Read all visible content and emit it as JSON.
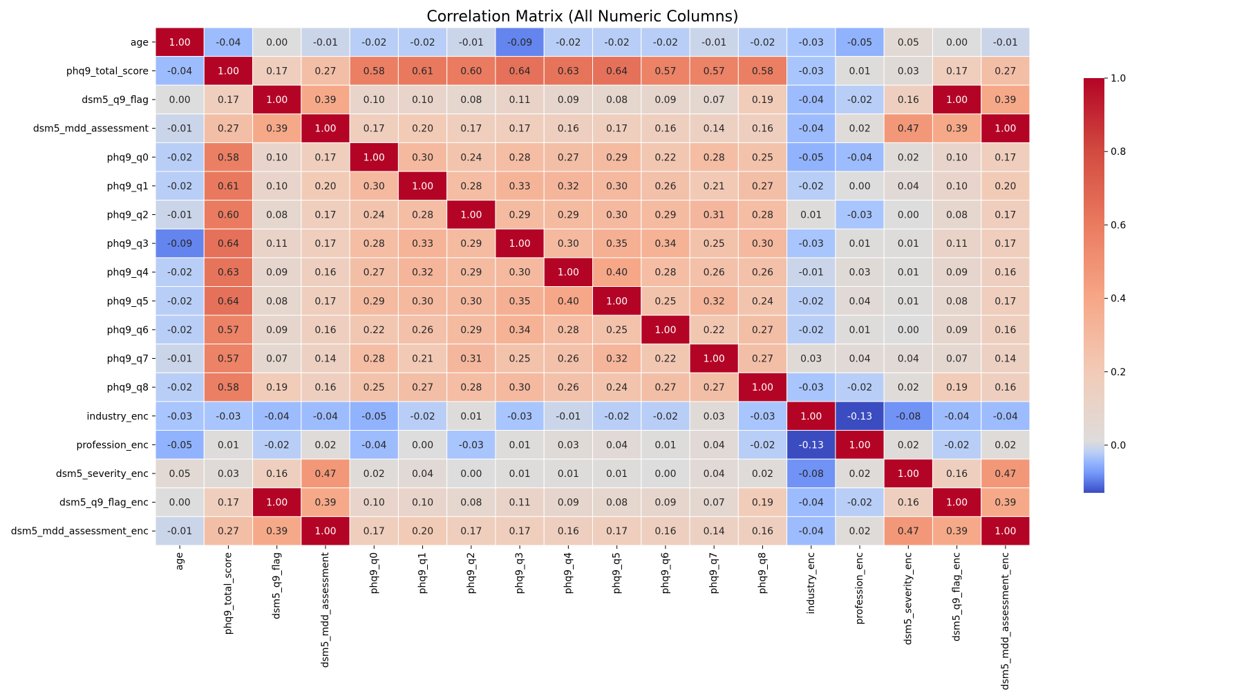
{
  "chart_data": {
    "type": "heatmap",
    "title": "Correlation Matrix (All Numeric Columns)",
    "xlabel": "",
    "ylabel": "",
    "labels": [
      "age",
      "phq9_total_score",
      "dsm5_q9_flag",
      "dsm5_mdd_assessment",
      "phq9_q0",
      "phq9_q1",
      "phq9_q2",
      "phq9_q3",
      "phq9_q4",
      "phq9_q5",
      "phq9_q6",
      "phq9_q7",
      "phq9_q8",
      "industry_enc",
      "profession_enc",
      "dsm5_severity_enc",
      "dsm5_q9_flag_enc",
      "dsm5_mdd_assessment_enc"
    ],
    "values": [
      [
        1.0,
        -0.04,
        -0.0,
        -0.01,
        -0.02,
        -0.02,
        -0.01,
        -0.09,
        -0.02,
        -0.02,
        -0.02,
        -0.01,
        -0.02,
        -0.03,
        -0.05,
        0.05,
        -0.0,
        -0.01
      ],
      [
        -0.04,
        1.0,
        0.17,
        0.27,
        0.58,
        0.61,
        0.6,
        0.64,
        0.63,
        0.64,
        0.57,
        0.57,
        0.58,
        -0.03,
        0.01,
        0.03,
        0.17,
        0.27
      ],
      [
        -0.0,
        0.17,
        1.0,
        0.39,
        0.1,
        0.1,
        0.08,
        0.11,
        0.09,
        0.08,
        0.09,
        0.07,
        0.19,
        -0.04,
        -0.02,
        0.16,
        1.0,
        0.39
      ],
      [
        -0.01,
        0.27,
        0.39,
        1.0,
        0.17,
        0.2,
        0.17,
        0.17,
        0.16,
        0.17,
        0.16,
        0.14,
        0.16,
        -0.04,
        0.02,
        0.47,
        0.39,
        1.0
      ],
      [
        -0.02,
        0.58,
        0.1,
        0.17,
        1.0,
        0.3,
        0.24,
        0.28,
        0.27,
        0.29,
        0.22,
        0.28,
        0.25,
        -0.05,
        -0.04,
        0.02,
        0.1,
        0.17
      ],
      [
        -0.02,
        0.61,
        0.1,
        0.2,
        0.3,
        1.0,
        0.28,
        0.33,
        0.32,
        0.3,
        0.26,
        0.21,
        0.27,
        -0.02,
        0.0,
        0.04,
        0.1,
        0.2
      ],
      [
        -0.01,
        0.6,
        0.08,
        0.17,
        0.24,
        0.28,
        1.0,
        0.29,
        0.29,
        0.3,
        0.29,
        0.31,
        0.28,
        0.01,
        -0.03,
        0.0,
        0.08,
        0.17
      ],
      [
        -0.09,
        0.64,
        0.11,
        0.17,
        0.28,
        0.33,
        0.29,
        1.0,
        0.3,
        0.35,
        0.34,
        0.25,
        0.3,
        -0.03,
        0.01,
        0.01,
        0.11,
        0.17
      ],
      [
        -0.02,
        0.63,
        0.09,
        0.16,
        0.27,
        0.32,
        0.29,
        0.3,
        1.0,
        0.4,
        0.28,
        0.26,
        0.26,
        -0.01,
        0.03,
        0.01,
        0.09,
        0.16
      ],
      [
        -0.02,
        0.64,
        0.08,
        0.17,
        0.29,
        0.3,
        0.3,
        0.35,
        0.4,
        1.0,
        0.25,
        0.32,
        0.24,
        -0.02,
        0.04,
        0.01,
        0.08,
        0.17
      ],
      [
        -0.02,
        0.57,
        0.09,
        0.16,
        0.22,
        0.26,
        0.29,
        0.34,
        0.28,
        0.25,
        1.0,
        0.22,
        0.27,
        -0.02,
        0.01,
        -0.0,
        0.09,
        0.16
      ],
      [
        -0.01,
        0.57,
        0.07,
        0.14,
        0.28,
        0.21,
        0.31,
        0.25,
        0.26,
        0.32,
        0.22,
        1.0,
        0.27,
        0.03,
        0.04,
        0.04,
        0.07,
        0.14
      ],
      [
        -0.02,
        0.58,
        0.19,
        0.16,
        0.25,
        0.27,
        0.28,
        0.3,
        0.26,
        0.24,
        0.27,
        0.27,
        1.0,
        -0.03,
        -0.02,
        0.02,
        0.19,
        0.16
      ],
      [
        -0.03,
        -0.03,
        -0.04,
        -0.04,
        -0.05,
        -0.02,
        0.01,
        -0.03,
        -0.01,
        -0.02,
        -0.02,
        0.03,
        -0.03,
        1.0,
        -0.13,
        -0.08,
        -0.04,
        -0.04
      ],
      [
        -0.05,
        0.01,
        -0.02,
        0.02,
        -0.04,
        0.0,
        -0.03,
        0.01,
        0.03,
        0.04,
        0.01,
        0.04,
        -0.02,
        -0.13,
        1.0,
        0.02,
        -0.02,
        0.02
      ],
      [
        0.05,
        0.03,
        0.16,
        0.47,
        0.02,
        0.04,
        0.0,
        0.01,
        0.01,
        0.01,
        -0.0,
        0.04,
        0.02,
        -0.08,
        0.02,
        1.0,
        0.16,
        0.47
      ],
      [
        -0.0,
        0.17,
        1.0,
        0.39,
        0.1,
        0.1,
        0.08,
        0.11,
        0.09,
        0.08,
        0.09,
        0.07,
        0.19,
        -0.04,
        -0.02,
        0.16,
        1.0,
        0.39
      ],
      [
        -0.01,
        0.27,
        0.39,
        1.0,
        0.17,
        0.2,
        0.17,
        0.17,
        0.16,
        0.17,
        0.16,
        0.14,
        0.16,
        -0.04,
        0.02,
        0.47,
        0.39,
        1.0
      ]
    ],
    "colormap": "coolwarm",
    "colormap_center": 0.0,
    "vmin": -0.13,
    "vmax": 1.0,
    "colorbar_ticks": [
      "0.0",
      "0.2",
      "0.4",
      "0.6",
      "0.8",
      "1.0"
    ],
    "annotations_decimals": 2,
    "grid": false,
    "legend": "colorbar-right"
  }
}
